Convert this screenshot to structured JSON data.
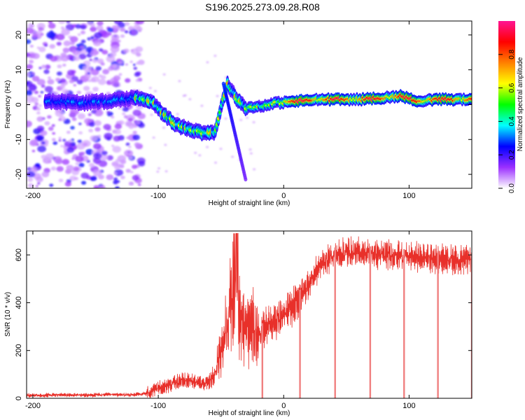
{
  "title": "S196.2025.273.09.28.R08",
  "chart_data": [
    {
      "type": "heatmap",
      "xlabel": "Height of straight line (km)",
      "ylabel": "Frequency (Hz)",
      "xlim": [
        -205,
        150
      ],
      "ylim": [
        -24,
        24
      ],
      "xticks": [
        -200,
        -100,
        0,
        100
      ],
      "yticks": [
        -20,
        -10,
        0,
        10,
        20
      ],
      "colorbar": {
        "label": "Normalized spectral amplitude",
        "range": [
          0,
          1
        ],
        "ticks": [
          "0.0",
          "0.2",
          "0.4",
          "0.6",
          "0.8"
        ],
        "tick_values": [
          0.0,
          0.2,
          0.4,
          0.6,
          0.8
        ],
        "colors": [
          "#ffffff",
          "#9b30ff",
          "#0000ff",
          "#00ffff",
          "#00ff00",
          "#ffff00",
          "#ff8000",
          "#ff0000",
          "#ff1493"
        ]
      },
      "ridge": [
        {
          "x": -185,
          "y": 1
        },
        {
          "x": -160,
          "y": 0.5
        },
        {
          "x": -140,
          "y": 1
        },
        {
          "x": -120,
          "y": 2
        },
        {
          "x": -105,
          "y": 1
        },
        {
          "x": -95,
          "y": -3
        },
        {
          "x": -85,
          "y": -6
        },
        {
          "x": -75,
          "y": -7
        },
        {
          "x": -65,
          "y": -8
        },
        {
          "x": -55,
          "y": -8
        },
        {
          "x": -45,
          "y": 6
        },
        {
          "x": -38,
          "y": 2
        },
        {
          "x": -30,
          "y": -1
        },
        {
          "x": -20,
          "y": -0.5
        },
        {
          "x": -5,
          "y": 0.5
        },
        {
          "x": 10,
          "y": 1
        },
        {
          "x": 30,
          "y": 1.5
        },
        {
          "x": 60,
          "y": 1.5
        },
        {
          "x": 80,
          "y": 2
        },
        {
          "x": 95,
          "y": 2.5
        },
        {
          "x": 105,
          "y": 1
        },
        {
          "x": 120,
          "y": 1.5
        },
        {
          "x": 150,
          "y": 1.5
        }
      ]
    },
    {
      "type": "line",
      "xlabel": "Height of straight line (km)",
      "ylabel": "SNR (10 * v/v)",
      "xlim": [
        -205,
        150
      ],
      "ylim": [
        0,
        700
      ],
      "xticks": [
        -200,
        -100,
        0,
        100
      ],
      "yticks": [
        0,
        200,
        400,
        600
      ],
      "color": "#e8302a",
      "series": [
        {
          "x": [
            -205,
            -180,
            -160,
            -140,
            -120,
            -110,
            -100,
            -90,
            -80,
            -70,
            -60,
            -55,
            -50,
            -45,
            -40,
            -35,
            -30,
            -25,
            -20,
            -15,
            -10,
            -5,
            0,
            10,
            20,
            30,
            40,
            50,
            60,
            70,
            80,
            90,
            100,
            110,
            120,
            130,
            140,
            150
          ],
          "values": [
            12,
            14,
            13,
            15,
            14,
            20,
            40,
            60,
            75,
            70,
            60,
            100,
            200,
            320,
            450,
            350,
            280,
            300,
            260,
            300,
            320,
            330,
            340,
            400,
            480,
            560,
            600,
            610,
            610,
            605,
            600,
            600,
            590,
            590,
            585,
            585,
            580,
            580
          ]
        }
      ],
      "dropouts": [
        -17,
        13,
        41,
        69,
        96,
        123,
        150
      ]
    }
  ]
}
